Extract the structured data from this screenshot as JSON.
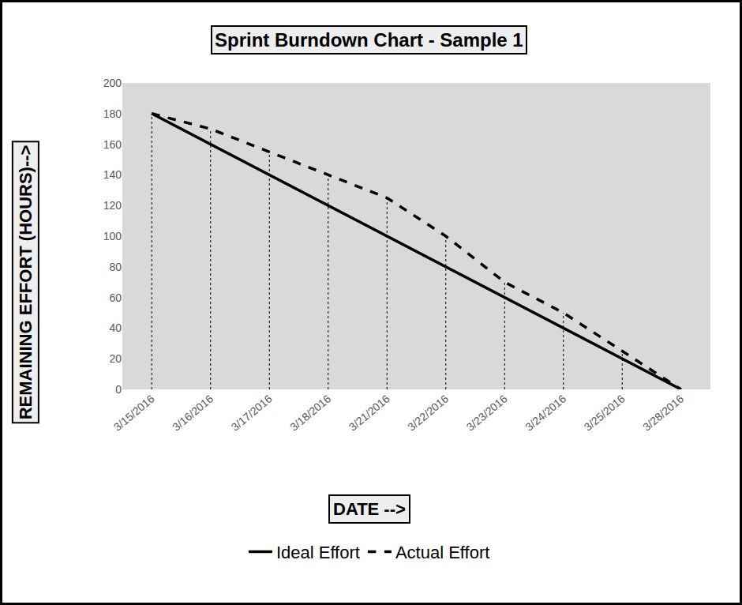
{
  "chart_data": {
    "type": "line",
    "title": "Sprint Burndown Chart - Sample 1",
    "xlabel": "DATE -->",
    "ylabel": "REMAINING EFFORT (HOURS)-->",
    "categories": [
      "3/15/2016",
      "3/16/2016",
      "3/17/2016",
      "3/18/2016",
      "3/21/2016",
      "3/22/2016",
      "3/23/2016",
      "3/24/2016",
      "3/25/2016",
      "3/28/2016"
    ],
    "series": [
      {
        "name": "Ideal Effort",
        "color": "#000000",
        "line_style": "solid",
        "values": [
          180,
          160,
          140,
          120,
          100,
          80,
          60,
          40,
          20,
          0
        ]
      },
      {
        "name": "Actual Effort",
        "color": "#000000",
        "line_style": "dash",
        "values": [
          180,
          170,
          155,
          140,
          125,
          100,
          70,
          50,
          25,
          0
        ]
      }
    ],
    "ylim": [
      0,
      200
    ],
    "yticks": [
      0,
      20,
      40,
      60,
      80,
      100,
      120,
      140,
      160,
      180,
      200
    ],
    "grid": false,
    "legend": "bottom"
  }
}
